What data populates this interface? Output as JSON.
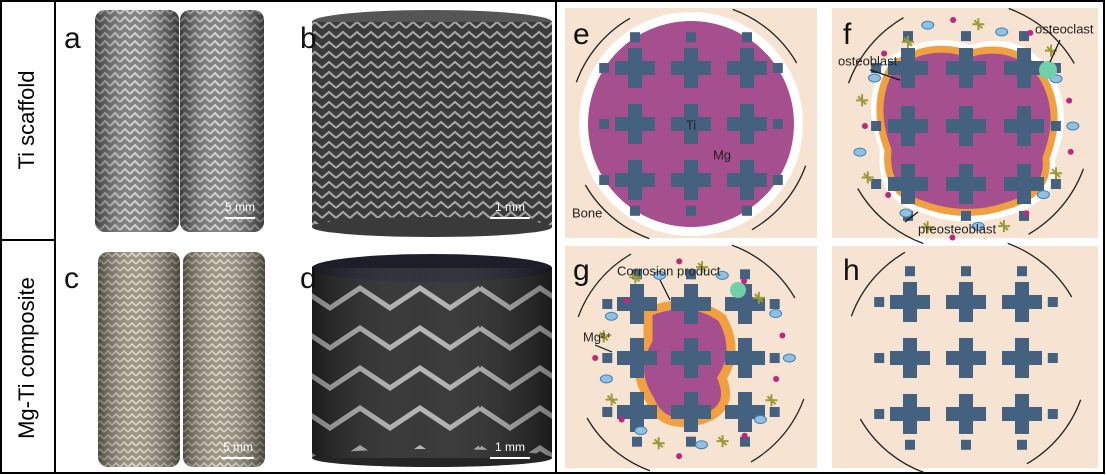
{
  "row_labels": [
    "Ti scaffold",
    "Mg-Ti composite"
  ],
  "panels": [
    {
      "label": "a",
      "scale_bar": "5 mm"
    },
    {
      "label": "b",
      "scale_bar": "1 mm"
    },
    {
      "label": "c",
      "scale_bar": "5 mm"
    },
    {
      "label": "d",
      "scale_bar": "1 mm"
    }
  ],
  "schematics": [
    {
      "label": "e",
      "annotations": [
        "Ti",
        "Mg",
        "Bone"
      ]
    },
    {
      "label": "f",
      "annotations": [
        "osteoblast",
        "osteoclast",
        "preosteoblast"
      ]
    },
    {
      "label": "g",
      "annotations": [
        "Corrosion product",
        "Mg²⁺"
      ]
    },
    {
      "label": "h",
      "annotations": []
    }
  ]
}
